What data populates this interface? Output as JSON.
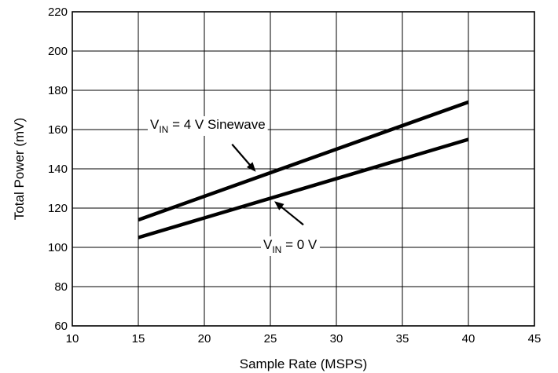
{
  "chart_data": {
    "type": "line",
    "title": "",
    "xlabel": "Sample Rate (MSPS)",
    "ylabel": "Total Power (mV)",
    "xlim": [
      10,
      45
    ],
    "ylim": [
      60,
      220
    ],
    "xticks": [
      10,
      15,
      20,
      25,
      30,
      35,
      40,
      45
    ],
    "yticks": [
      60,
      80,
      100,
      120,
      140,
      160,
      180,
      200,
      220
    ],
    "grid": true,
    "legend": "none",
    "series": [
      {
        "label_prefix": "V",
        "label_sub": "IN",
        "label_suffix": " = 4 V Sinewave",
        "x": [
          15,
          40
        ],
        "y": [
          114,
          174
        ]
      },
      {
        "label_prefix": "V",
        "label_sub": "IN",
        "label_suffix": " = 0 V",
        "x": [
          15,
          40
        ],
        "y": [
          105,
          155
        ]
      }
    ],
    "colors": {
      "line": "#000000",
      "grid": "#000000",
      "background": "#ffffff"
    }
  }
}
